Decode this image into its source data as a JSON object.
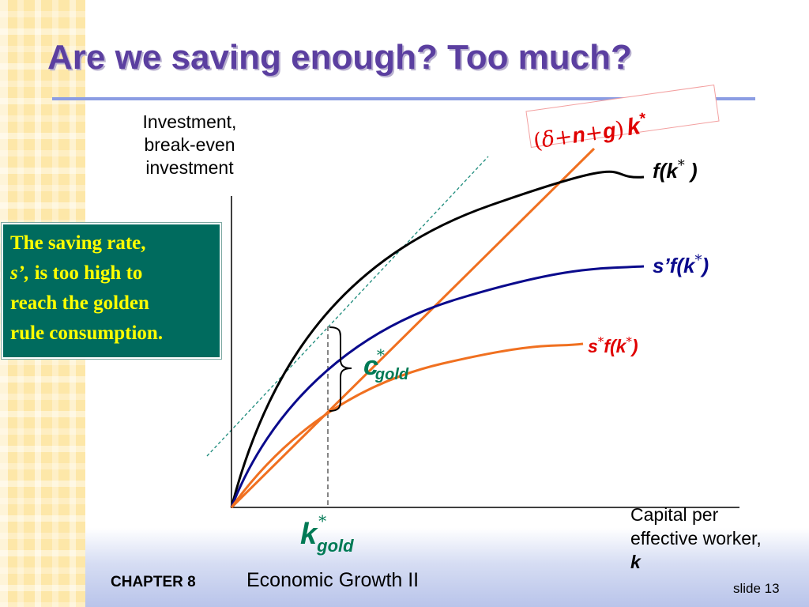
{
  "slide": {
    "title": "Are we saving enough? Too much?",
    "chapter_label": "CHAPTER 8",
    "chapter_title": "Economic Growth II",
    "slide_number": "slide 13"
  },
  "axes": {
    "y_label_lines": [
      "Investment,",
      "break-even",
      "investment"
    ],
    "x_label_lines": [
      "Capital per",
      "effective worker,"
    ],
    "x_symbol": "k"
  },
  "callout": {
    "line1": "The saving rate,",
    "line2_italic": "s’,",
    "line2_rest": " is too high to",
    "line3": "reach the golden",
    "line4": "rule consumption."
  },
  "curve_labels": {
    "breakeven": {
      "open": "(",
      "delta": "δ",
      "plus1": "+",
      "n": "n",
      "plus2": "+",
      "g": "g",
      "close": ")",
      "k": "k",
      "star": "*"
    },
    "production": {
      "main": "f(k",
      "star": "*",
      "close": " )"
    },
    "high_saving": {
      "main": "s’f(k",
      "star": "*",
      "close": ")"
    },
    "golden_saving": {
      "s": "s",
      "star1": "*",
      "main": "f(k",
      "star2": "*",
      "close": ")"
    },
    "c_gold": {
      "c": "c",
      "star": "*",
      "sub": "gold"
    },
    "k_gold": {
      "k": "k",
      "star": "*",
      "sub": "gold"
    }
  },
  "colors": {
    "production": "#000000",
    "high_saving": "#0a0a8c",
    "golden_saving": "#f07020",
    "breakeven": "#f07020",
    "tangent": "#1a8a7a",
    "title": "#5b3fa0",
    "label_red": "#e00000",
    "callout_bg": "#006b5e",
    "callout_text": "#ffff00"
  }
}
